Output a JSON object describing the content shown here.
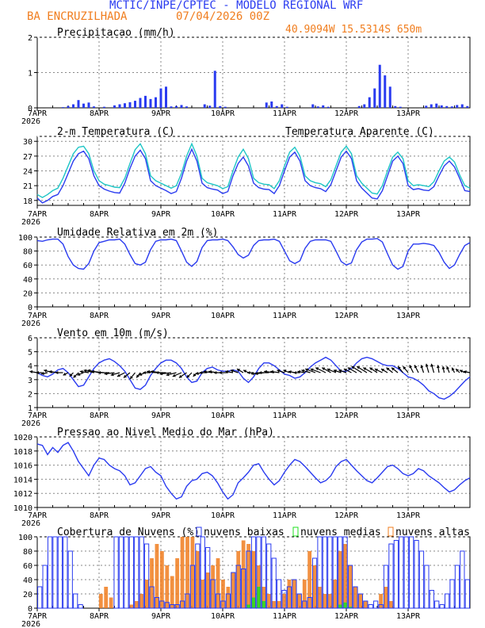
{
  "header": {
    "title": "MCTIC/INPE/CPTEC - MODELO REGIONAL WRF",
    "location": "BA ENCRUZILHADA",
    "run": "07/04/2026 00Z",
    "coords": "40.9094W 15.5314S 650m"
  },
  "colors": {
    "blue": "#2a3bf0",
    "orange": "#f07d1e",
    "cyan": "#1ec6c6",
    "green": "#1ee01e",
    "black": "#000000"
  },
  "x_axis": {
    "labels": [
      "7APR",
      "8APR",
      "9APR",
      "10APR",
      "11APR",
      "12APR",
      "13APR"
    ],
    "year": "2026",
    "hours_total": 168
  },
  "chart_data": [
    {
      "id": "precip",
      "type": "bar",
      "title": "Precipitacao (mm/h)",
      "ylim": [
        0,
        2
      ],
      "yticks": [
        0,
        1,
        2
      ],
      "x_hours": [
        10,
        12,
        14,
        16,
        18,
        20,
        22,
        26,
        30,
        32,
        34,
        36,
        38,
        40,
        42,
        44,
        46,
        48,
        50,
        52,
        54,
        56,
        58,
        65,
        67,
        69,
        71,
        73,
        89,
        91,
        93,
        95,
        97,
        107,
        109,
        111,
        113,
        125,
        127,
        129,
        131,
        133,
        135,
        137,
        139,
        141,
        151,
        153,
        155,
        157,
        159,
        161,
        163,
        165,
        167
      ],
      "values": [
        0.02,
        0.05,
        0.1,
        0.22,
        0.12,
        0.15,
        0.04,
        0.03,
        0.07,
        0.1,
        0.13,
        0.16,
        0.2,
        0.28,
        0.34,
        0.25,
        0.3,
        0.55,
        0.6,
        0.04,
        0.05,
        0.08,
        0.04,
        0.1,
        0.06,
        1.05,
        0.05,
        0.03,
        0.15,
        0.18,
        0.05,
        0.1,
        0.03,
        0.1,
        0.04,
        0.07,
        0.03,
        0.05,
        0.1,
        0.3,
        0.55,
        1.22,
        0.92,
        0.6,
        0.05,
        0.03,
        0.06,
        0.1,
        0.12,
        0.07,
        0.05,
        0.04,
        0.08,
        0.1,
        0.05
      ],
      "color": "#2a3bf0"
    },
    {
      "id": "temp",
      "type": "line",
      "title": "2-m Temperatura (C)",
      "legend": "Temperatura Aparente (C)",
      "ylim": [
        17,
        31
      ],
      "yticks": [
        18,
        21,
        24,
        27,
        30
      ],
      "series": [
        {
          "name": "2-m Temperatura (C)",
          "color": "#2a3bf0",
          "values": [
            18.5,
            17.5,
            18.0,
            18.8,
            19.2,
            21.0,
            23.5,
            26.0,
            27.5,
            28.0,
            26.5,
            23.0,
            21.0,
            20.3,
            19.9,
            19.6,
            19.5,
            21.5,
            24.5,
            27.0,
            28.2,
            26.5,
            22.0,
            21.0,
            20.5,
            20.0,
            19.4,
            19.8,
            22.5,
            26.0,
            28.4,
            26.0,
            21.5,
            20.6,
            20.3,
            20.1,
            19.4,
            19.8,
            23.0,
            25.5,
            26.8,
            25.0,
            21.5,
            20.6,
            20.3,
            20.2,
            19.4,
            21.0,
            24.0,
            26.8,
            27.8,
            26.0,
            22.0,
            21.0,
            20.6,
            20.4,
            19.8,
            21.2,
            24.0,
            26.8,
            28.0,
            26.5,
            22.0,
            20.5,
            19.5,
            18.5,
            18.3,
            20.0,
            23.0,
            26.0,
            27.0,
            25.5,
            21.0,
            20.2,
            20.4,
            20.1,
            20.0,
            20.8,
            23.0,
            25.0,
            26.0,
            24.8,
            22.5,
            20.0,
            19.8
          ]
        },
        {
          "name": "Temperatura Aparente (C)",
          "color": "#1ec6c6",
          "values": [
            19.2,
            18.6,
            19.2,
            20.0,
            20.5,
            22.5,
            25.0,
            27.5,
            28.8,
            29.0,
            27.5,
            24.0,
            22.0,
            21.3,
            21.0,
            20.7,
            20.6,
            22.5,
            25.5,
            28.3,
            29.5,
            27.5,
            23.0,
            22.0,
            21.5,
            21.0,
            20.5,
            21.0,
            23.5,
            27.0,
            29.5,
            27.0,
            22.5,
            21.6,
            21.3,
            21.0,
            20.4,
            20.8,
            24.0,
            26.8,
            28.4,
            26.5,
            22.5,
            21.6,
            21.3,
            21.2,
            20.4,
            22.0,
            25.0,
            27.8,
            28.8,
            27.0,
            23.0,
            22.0,
            21.6,
            21.4,
            20.8,
            22.2,
            25.0,
            27.8,
            29.0,
            27.5,
            23.0,
            21.5,
            20.5,
            19.5,
            19.3,
            21.0,
            24.0,
            26.8,
            27.8,
            26.5,
            22.0,
            21.0,
            21.2,
            21.0,
            20.8,
            21.8,
            24.0,
            26.0,
            26.8,
            25.8,
            23.2,
            21.0,
            20.5
          ]
        }
      ]
    },
    {
      "id": "rh",
      "type": "line",
      "title": "Umidade Relativa em 2m (%)",
      "ylim": [
        0,
        100
      ],
      "yticks": [
        0,
        20,
        40,
        60,
        80,
        100
      ],
      "series": [
        {
          "name": "Umidade Relativa",
          "color": "#2a3bf0",
          "values": [
            95,
            94,
            96,
            97,
            97,
            90,
            72,
            60,
            55,
            54,
            62,
            80,
            92,
            94,
            96,
            96,
            97,
            90,
            75,
            62,
            60,
            64,
            82,
            94,
            96,
            96,
            97,
            95,
            80,
            64,
            58,
            65,
            85,
            95,
            96,
            96,
            97,
            95,
            86,
            75,
            70,
            74,
            88,
            95,
            96,
            96,
            97,
            94,
            80,
            66,
            62,
            66,
            84,
            94,
            96,
            96,
            96,
            94,
            80,
            65,
            60,
            63,
            82,
            93,
            97,
            97,
            98,
            93,
            76,
            60,
            54,
            58,
            80,
            90,
            90,
            91,
            90,
            88,
            78,
            64,
            55,
            60,
            75,
            88,
            92
          ]
        }
      ]
    },
    {
      "id": "wind",
      "type": "line",
      "title": "Vento em 10m (m/s)",
      "ylim": [
        1,
        6
      ],
      "yticks": [
        1,
        2,
        3,
        4,
        5,
        6
      ],
      "series": [
        {
          "name": "Vento em 10m",
          "color": "#2a3bf0",
          "values": [
            3.5,
            3.3,
            3.2,
            3.4,
            3.7,
            3.8,
            3.5,
            3.0,
            2.5,
            2.6,
            3.2,
            3.8,
            4.2,
            4.4,
            4.5,
            4.3,
            4.0,
            3.6,
            3.0,
            2.4,
            2.3,
            2.6,
            3.3,
            3.8,
            4.2,
            4.4,
            4.4,
            4.2,
            3.8,
            3.2,
            2.8,
            2.9,
            3.5,
            3.8,
            3.9,
            3.7,
            3.6,
            3.6,
            3.7,
            3.6,
            3.1,
            2.8,
            3.2,
            3.8,
            4.2,
            4.2,
            4.0,
            3.7,
            3.4,
            3.3,
            3.1,
            3.2,
            3.5,
            3.9,
            4.2,
            4.4,
            4.6,
            4.4,
            4.0,
            3.6,
            3.6,
            3.8,
            4.2,
            4.5,
            4.6,
            4.5,
            4.3,
            4.1,
            4.0,
            4.0,
            3.8,
            3.5,
            3.2,
            3.1,
            2.9,
            2.6,
            2.2,
            2.0,
            1.7,
            1.6,
            1.8,
            2.1,
            2.5,
            2.9,
            3.2
          ]
        }
      ],
      "vectors_u": [
        -0.6,
        -0.5,
        -0.5,
        -0.7,
        -0.7,
        -0.6,
        -0.4,
        -0.3,
        -0.4,
        -0.5,
        -0.7,
        -0.8,
        -0.9,
        -1.0,
        -0.9,
        -0.8,
        -0.7,
        -0.6,
        -0.5,
        -0.4,
        -0.3,
        -0.5,
        -0.6,
        -0.7,
        -0.8,
        -0.8,
        -0.9,
        -0.8,
        -0.7,
        -0.6,
        -0.4,
        -0.3,
        -0.5,
        -0.6,
        -0.7,
        -0.7,
        -0.7,
        -0.7,
        -0.6,
        -0.6,
        -0.5,
        -0.4,
        -0.5,
        -0.6,
        -0.7,
        -0.8,
        -0.8,
        -0.7,
        -0.6,
        -0.5,
        -0.5,
        -0.5,
        -0.6,
        -0.7,
        -0.8,
        -0.8,
        -0.8,
        -0.7,
        -0.7,
        -0.6,
        -0.6,
        -0.6,
        -0.7,
        -0.8,
        -0.8,
        -0.7,
        -0.6,
        -0.6,
        -0.5,
        -0.5,
        -0.5,
        -0.4,
        -0.4,
        -0.3,
        -0.3,
        -0.2,
        -0.2,
        -0.2,
        -0.1,
        -0.1,
        -0.2,
        -0.2,
        -0.3,
        -0.4,
        -0.5
      ],
      "vectors_v": [
        0.1,
        0.0,
        -0.1,
        0.2,
        0.1,
        0.0,
        -0.2,
        -0.3,
        -0.4,
        -0.2,
        0.1,
        0.2,
        0.2,
        0.1,
        0.0,
        -0.1,
        -0.2,
        -0.3,
        -0.4,
        -0.5,
        -0.4,
        -0.2,
        0.0,
        0.1,
        0.1,
        0.0,
        -0.1,
        -0.2,
        -0.3,
        -0.4,
        -0.4,
        -0.3,
        -0.1,
        0.0,
        0.1,
        0.1,
        0.0,
        0.0,
        0.1,
        0.2,
        0.3,
        0.2,
        0.0,
        -0.1,
        -0.1,
        0.0,
        0.1,
        0.1,
        0.2,
        0.2,
        0.1,
        0.0,
        0.1,
        0.2,
        0.3,
        0.3,
        0.4,
        0.4,
        0.3,
        0.2,
        0.2,
        0.3,
        0.4,
        0.5,
        0.5,
        0.4,
        0.4,
        0.3,
        0.3,
        0.4,
        0.4,
        0.5,
        0.5,
        0.6,
        0.6,
        0.6,
        0.7,
        0.7,
        0.6,
        0.5,
        0.5,
        0.4,
        0.3,
        0.2,
        0.1
      ]
    },
    {
      "id": "pressure",
      "type": "line",
      "title": "Pressao ao Nivel Medio do Mar (hPa)",
      "ylim": [
        1010,
        1020
      ],
      "yticks": [
        1010,
        1012,
        1014,
        1016,
        1018,
        1020
      ],
      "series": [
        {
          "name": "Pressao",
          "color": "#2a3bf0",
          "values": [
            1019.0,
            1018.8,
            1017.5,
            1018.5,
            1017.8,
            1018.8,
            1019.2,
            1018.0,
            1016.5,
            1015.5,
            1014.5,
            1016.0,
            1017.0,
            1016.8,
            1016.0,
            1015.5,
            1015.2,
            1014.5,
            1013.2,
            1013.5,
            1014.5,
            1015.5,
            1015.8,
            1015.0,
            1014.5,
            1013.0,
            1012.0,
            1011.2,
            1011.5,
            1013.0,
            1013.8,
            1014.0,
            1014.8,
            1015.0,
            1014.5,
            1013.5,
            1012.2,
            1011.2,
            1011.8,
            1013.5,
            1014.2,
            1015.0,
            1016.0,
            1016.2,
            1015.0,
            1014.0,
            1013.2,
            1013.8,
            1015.0,
            1016.0,
            1016.8,
            1016.5,
            1015.8,
            1015.0,
            1014.2,
            1013.5,
            1013.8,
            1014.5,
            1015.8,
            1016.5,
            1016.8,
            1016.0,
            1015.2,
            1014.5,
            1013.8,
            1013.5,
            1014.2,
            1015.0,
            1015.8,
            1016.0,
            1015.5,
            1014.8,
            1014.5,
            1014.8,
            1015.5,
            1015.2,
            1014.5,
            1014.0,
            1013.5,
            1012.8,
            1012.2,
            1012.5,
            1013.2,
            1013.8,
            1014.2
          ]
        }
      ]
    },
    {
      "id": "clouds",
      "type": "bar",
      "title": "Cobertura de Nuvens (%)",
      "legend": [
        "nuvens baixas",
        "nuvens medias",
        "nuvens altas"
      ],
      "ylim": [
        0,
        100
      ],
      "yticks": [
        0,
        20,
        40,
        60,
        80,
        100
      ],
      "series": [
        {
          "name": "nuvens baixas",
          "color": "#2a3bf0",
          "values": [
            30,
            60,
            100,
            100,
            100,
            100,
            80,
            20,
            5,
            0,
            0,
            0,
            0,
            0,
            0,
            100,
            100,
            100,
            100,
            100,
            100,
            90,
            30,
            15,
            10,
            8,
            5,
            5,
            10,
            20,
            60,
            90,
            100,
            85,
            40,
            20,
            10,
            20,
            50,
            60,
            55,
            80,
            100,
            100,
            100,
            90,
            70,
            40,
            25,
            30,
            40,
            20,
            10,
            15,
            70,
            100,
            100,
            100,
            100,
            100,
            100,
            60,
            30,
            20,
            10,
            5,
            10,
            5,
            60,
            90,
            95,
            100,
            100,
            100,
            95,
            80,
            60,
            25,
            10,
            5,
            20,
            40,
            60,
            80,
            40
          ]
        },
        {
          "name": "nuvens medias",
          "color": "#1ee01e",
          "values": [
            0,
            0,
            0,
            0,
            0,
            0,
            0,
            0,
            0,
            0,
            0,
            0,
            0,
            0,
            0,
            0,
            0,
            0,
            0,
            0,
            0,
            0,
            0,
            0,
            0,
            0,
            0,
            0,
            0,
            0,
            0,
            0,
            0,
            0,
            0,
            0,
            0,
            0,
            0,
            0,
            0,
            5,
            15,
            30,
            10,
            0,
            0,
            0,
            0,
            0,
            0,
            0,
            0,
            0,
            0,
            0,
            0,
            0,
            0,
            5,
            8,
            2,
            0,
            0,
            0,
            0,
            0,
            0,
            0,
            0,
            0,
            0,
            0,
            0,
            0,
            0,
            0,
            0,
            0,
            0,
            0,
            0,
            0,
            0,
            0
          ]
        },
        {
          "name": "nuvens altas",
          "color": "#f07d1e",
          "values": [
            0,
            0,
            0,
            0,
            0,
            0,
            0,
            0,
            0,
            0,
            0,
            0,
            20,
            30,
            15,
            0,
            0,
            0,
            5,
            10,
            20,
            40,
            70,
            90,
            80,
            60,
            45,
            70,
            100,
            100,
            100,
            80,
            40,
            50,
            60,
            70,
            40,
            30,
            50,
            80,
            95,
            90,
            80,
            60,
            30,
            20,
            10,
            10,
            20,
            40,
            40,
            20,
            40,
            80,
            60,
            30,
            20,
            20,
            40,
            80,
            90,
            60,
            30,
            20,
            10,
            0,
            0,
            20,
            30,
            10,
            0,
            0,
            0,
            0,
            0,
            0,
            0,
            0,
            0,
            0,
            0,
            0,
            0,
            0,
            0
          ]
        }
      ]
    }
  ]
}
